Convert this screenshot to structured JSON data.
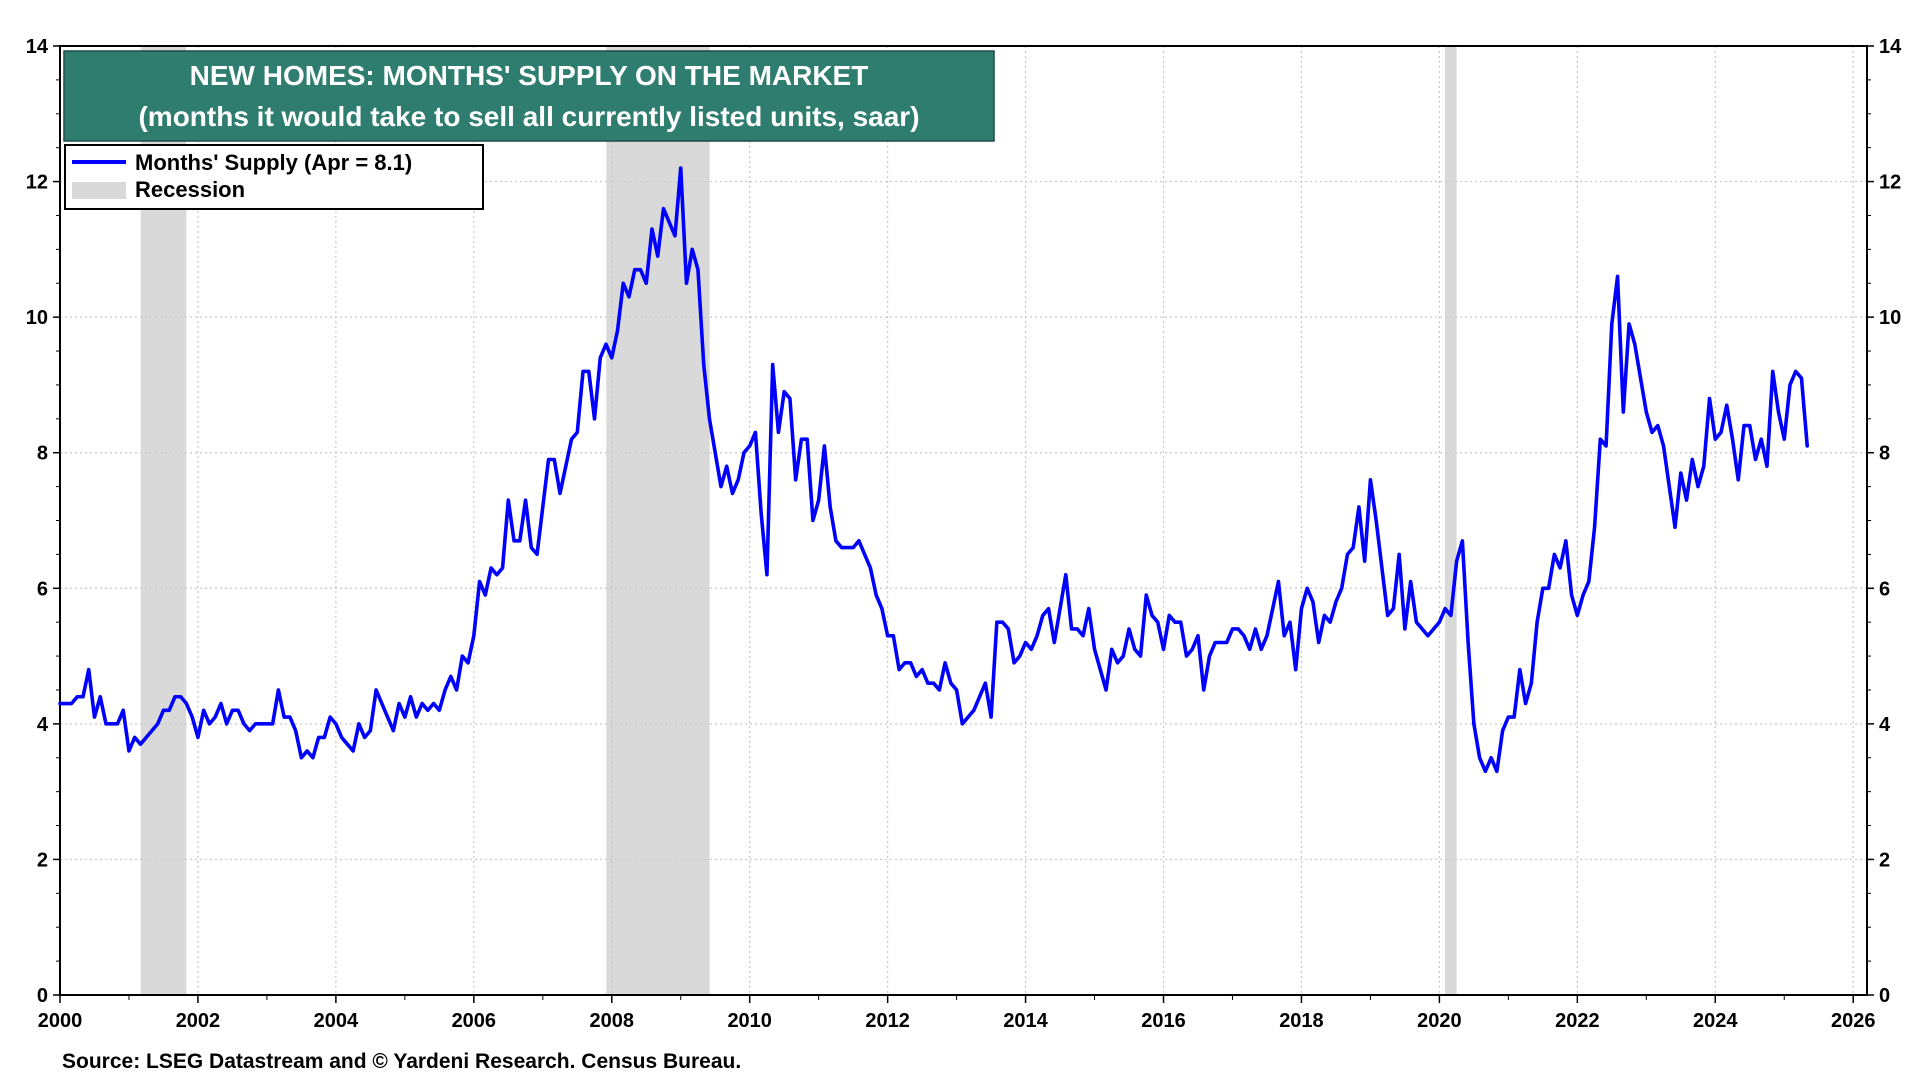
{
  "chart_data": {
    "type": "line",
    "title": "NEW HOMES: MONTHS' SUPPLY ON  THE MARKET",
    "subtitle": "(months it would take to sell all currently listed units, saar)",
    "xlabel": "",
    "ylabel": "",
    "xlim": [
      2000,
      2026.2
    ],
    "ylim": [
      0,
      14
    ],
    "x_ticks": [
      "2000",
      "2002",
      "2004",
      "2006",
      "2008",
      "2010",
      "2012",
      "2014",
      "2016",
      "2018",
      "2020",
      "2022",
      "2024",
      "2026"
    ],
    "y_ticks": [
      "0",
      "2",
      "4",
      "6",
      "8",
      "10",
      "12",
      "14"
    ],
    "grid": true,
    "legend_position": "top-left",
    "colors": {
      "series": "#0000ff",
      "recession": "#d9d9d9",
      "title_bg": "#2e7d6e",
      "title_text": "#ffffff"
    },
    "recessions": [
      {
        "start": 2001.17,
        "end": 2001.83
      },
      {
        "start": 2007.92,
        "end": 2009.42
      },
      {
        "start": 2020.08,
        "end": 2020.25
      }
    ],
    "legend": {
      "series_label": "Months' Supply (Apr = 8.1)",
      "recession_label": "Recession"
    },
    "series": [
      {
        "name": "Months' Supply (Apr = 8.1)",
        "start": "2000-01",
        "frequency": "monthly",
        "values": [
          4.3,
          4.3,
          4.3,
          4.4,
          4.4,
          4.8,
          4.1,
          4.4,
          4.0,
          4.0,
          4.0,
          4.2,
          3.6,
          3.8,
          3.7,
          3.8,
          3.9,
          4.0,
          4.2,
          4.2,
          4.4,
          4.4,
          4.3,
          4.1,
          3.8,
          4.2,
          4.0,
          4.1,
          4.3,
          4.0,
          4.2,
          4.2,
          4.0,
          3.9,
          4.0,
          4.0,
          4.0,
          4.0,
          4.5,
          4.1,
          4.1,
          3.9,
          3.5,
          3.6,
          3.5,
          3.8,
          3.8,
          4.1,
          4.0,
          3.8,
          3.7,
          3.6,
          4.0,
          3.8,
          3.9,
          4.5,
          4.3,
          4.1,
          3.9,
          4.3,
          4.1,
          4.4,
          4.1,
          4.3,
          4.2,
          4.3,
          4.2,
          4.5,
          4.7,
          4.5,
          5.0,
          4.9,
          5.3,
          6.1,
          5.9,
          6.3,
          6.2,
          6.3,
          7.3,
          6.7,
          6.7,
          7.3,
          6.6,
          6.5,
          7.2,
          7.9,
          7.9,
          7.4,
          7.8,
          8.2,
          8.3,
          9.2,
          9.2,
          8.5,
          9.4,
          9.6,
          9.4,
          9.8,
          10.5,
          10.3,
          10.7,
          10.7,
          10.5,
          11.3,
          10.9,
          11.6,
          11.4,
          11.2,
          12.2,
          10.5,
          11.0,
          10.7,
          9.3,
          8.5,
          8.0,
          7.5,
          7.8,
          7.4,
          7.6,
          8.0,
          8.1,
          8.3,
          7.1,
          6.2,
          9.3,
          8.3,
          8.9,
          8.8,
          7.6,
          8.2,
          8.2,
          7.0,
          7.3,
          8.1,
          7.2,
          6.7,
          6.6,
          6.6,
          6.6,
          6.7,
          6.5,
          6.3,
          5.9,
          5.7,
          5.3,
          5.3,
          4.8,
          4.9,
          4.9,
          4.7,
          4.8,
          4.6,
          4.6,
          4.5,
          4.9,
          4.6,
          4.5,
          4.0,
          4.1,
          4.2,
          4.4,
          4.6,
          4.1,
          5.5,
          5.5,
          5.4,
          4.9,
          5.0,
          5.2,
          5.1,
          5.3,
          5.6,
          5.7,
          5.2,
          5.7,
          6.2,
          5.4,
          5.4,
          5.3,
          5.7,
          5.1,
          4.8,
          4.5,
          5.1,
          4.9,
          5.0,
          5.4,
          5.1,
          5.0,
          5.9,
          5.6,
          5.5,
          5.1,
          5.6,
          5.5,
          5.5,
          5.0,
          5.1,
          5.3,
          4.5,
          5.0,
          5.2,
          5.2,
          5.2,
          5.4,
          5.4,
          5.3,
          5.1,
          5.4,
          5.1,
          5.3,
          5.7,
          6.1,
          5.3,
          5.5,
          4.8,
          5.7,
          6.0,
          5.8,
          5.2,
          5.6,
          5.5,
          5.8,
          6.0,
          6.5,
          6.6,
          7.2,
          6.4,
          7.6,
          7.0,
          6.3,
          5.6,
          5.7,
          6.5,
          5.4,
          6.1,
          5.5,
          5.4,
          5.3,
          5.4,
          5.5,
          5.7,
          5.6,
          6.4,
          6.7,
          5.2,
          4.0,
          3.5,
          3.3,
          3.5,
          3.3,
          3.9,
          4.1,
          4.1,
          4.8,
          4.3,
          4.6,
          5.5,
          6.0,
          6.0,
          6.5,
          6.3,
          6.7,
          5.9,
          5.6,
          5.9,
          6.1,
          6.9,
          8.2,
          8.1,
          9.9,
          10.6,
          8.6,
          9.9,
          9.6,
          9.1,
          8.6,
          8.3,
          8.4,
          8.1,
          7.5,
          6.9,
          7.7,
          7.3,
          7.9,
          7.5,
          7.8,
          8.8,
          8.2,
          8.3,
          8.7,
          8.2,
          7.6,
          8.4,
          8.4,
          7.9,
          8.2,
          7.8,
          9.2,
          8.6,
          8.2,
          9.0,
          9.2,
          9.1,
          8.1
        ]
      }
    ],
    "source": "Source: LSEG Datastream and © Yardeni Research. Census Bureau."
  }
}
